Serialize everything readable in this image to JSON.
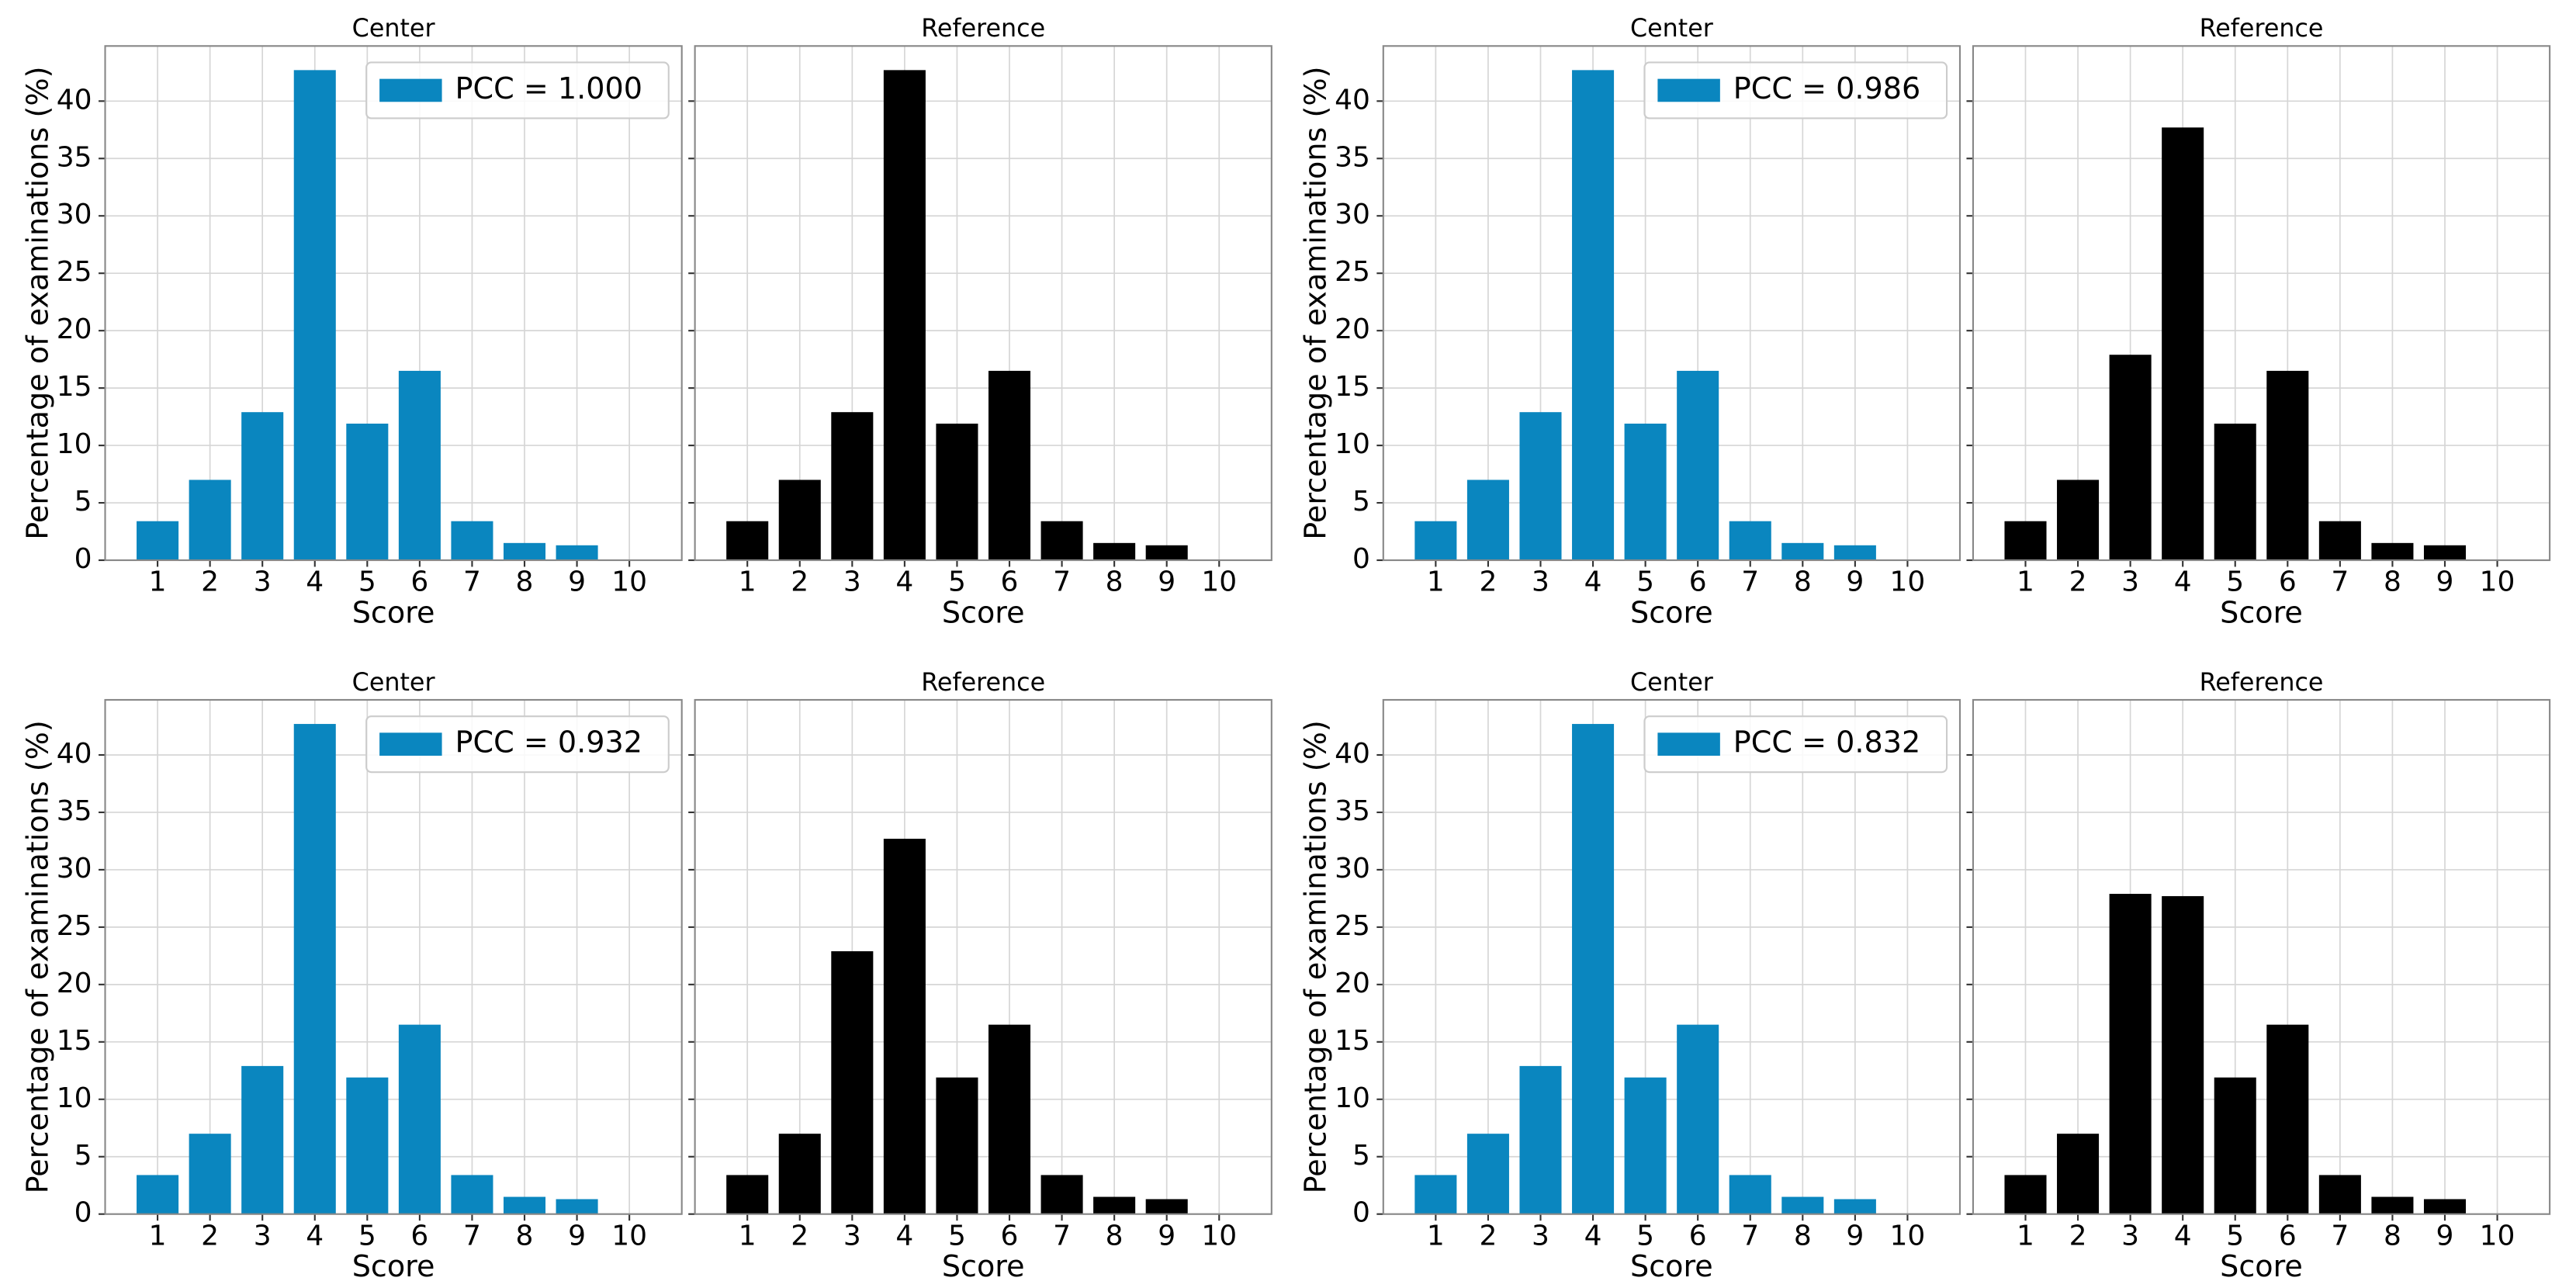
{
  "chart_data": [
    {
      "type": "bar",
      "title": "Center",
      "xlabel": "Score",
      "ylabel": "Percentage of examinations (%)",
      "x": [
        1,
        2,
        3,
        4,
        5,
        6,
        7,
        8,
        9,
        10
      ],
      "xlim": [
        0,
        11
      ],
      "xticks": [
        1,
        2,
        3,
        4,
        5,
        6,
        7,
        8,
        9,
        10
      ],
      "ylim": [
        0,
        44.8
      ],
      "yticks": [
        0,
        5,
        10,
        15,
        20,
        25,
        30,
        35,
        40
      ],
      "grid": true,
      "legend": "upper right",
      "series": [
        {
          "name": "PCC = 1.000",
          "color": "#0a86bf",
          "values": [
            3.4,
            7,
            12.9,
            42.7,
            11.9,
            16.5,
            3.4,
            1.5,
            1.3,
            0
          ]
        }
      ]
    },
    {
      "type": "bar",
      "title": "Reference",
      "xlabel": "Score",
      "sharey": true,
      "x": [
        1,
        2,
        3,
        4,
        5,
        6,
        7,
        8,
        9,
        10
      ],
      "xlim": [
        0,
        11
      ],
      "xticks": [
        1,
        2,
        3,
        4,
        5,
        6,
        7,
        8,
        9,
        10
      ],
      "grid": true,
      "series": [
        {
          "color": "#000000",
          "values": [
            3.4,
            7,
            12.9,
            42.7,
            11.9,
            16.5,
            3.4,
            1.5,
            1.3,
            0
          ]
        }
      ]
    },
    {
      "type": "bar",
      "title": "Center",
      "xlabel": "Score",
      "ylabel": "Percentage of examinations (%)",
      "x": [
        1,
        2,
        3,
        4,
        5,
        6,
        7,
        8,
        9,
        10
      ],
      "xlim": [
        0,
        11
      ],
      "xticks": [
        1,
        2,
        3,
        4,
        5,
        6,
        7,
        8,
        9,
        10
      ],
      "ylim": [
        0,
        44.8
      ],
      "yticks": [
        0,
        5,
        10,
        15,
        20,
        25,
        30,
        35,
        40
      ],
      "grid": true,
      "legend": "upper right",
      "series": [
        {
          "name": "PCC = 0.986",
          "color": "#0a86bf",
          "values": [
            3.4,
            7,
            12.9,
            42.7,
            11.9,
            16.5,
            3.4,
            1.5,
            1.3,
            0
          ]
        }
      ]
    },
    {
      "type": "bar",
      "title": "Reference",
      "xlabel": "Score",
      "sharey": true,
      "x": [
        1,
        2,
        3,
        4,
        5,
        6,
        7,
        8,
        9,
        10
      ],
      "xlim": [
        0,
        11
      ],
      "xticks": [
        1,
        2,
        3,
        4,
        5,
        6,
        7,
        8,
        9,
        10
      ],
      "grid": true,
      "series": [
        {
          "color": "#000000",
          "values": [
            3.4,
            7,
            17.9,
            37.7,
            11.9,
            16.5,
            3.4,
            1.5,
            1.3,
            0
          ]
        }
      ]
    },
    {
      "type": "bar",
      "title": "Center",
      "xlabel": "Score",
      "ylabel": "Percentage of examinations (%)",
      "x": [
        1,
        2,
        3,
        4,
        5,
        6,
        7,
        8,
        9,
        10
      ],
      "xlim": [
        0,
        11
      ],
      "xticks": [
        1,
        2,
        3,
        4,
        5,
        6,
        7,
        8,
        9,
        10
      ],
      "ylim": [
        0,
        44.8
      ],
      "yticks": [
        0,
        5,
        10,
        15,
        20,
        25,
        30,
        35,
        40
      ],
      "grid": true,
      "legend": "upper right",
      "series": [
        {
          "name": "PCC = 0.932",
          "color": "#0a86bf",
          "values": [
            3.4,
            7,
            12.9,
            42.7,
            11.9,
            16.5,
            3.4,
            1.5,
            1.3,
            0
          ]
        }
      ]
    },
    {
      "type": "bar",
      "title": "Reference",
      "xlabel": "Score",
      "sharey": true,
      "x": [
        1,
        2,
        3,
        4,
        5,
        6,
        7,
        8,
        9,
        10
      ],
      "xlim": [
        0,
        11
      ],
      "xticks": [
        1,
        2,
        3,
        4,
        5,
        6,
        7,
        8,
        9,
        10
      ],
      "grid": true,
      "series": [
        {
          "color": "#000000",
          "values": [
            3.4,
            7,
            22.9,
            32.7,
            11.9,
            16.5,
            3.4,
            1.5,
            1.3,
            0
          ]
        }
      ]
    },
    {
      "type": "bar",
      "title": "Center",
      "xlabel": "Score",
      "ylabel": "Percentage of examinations (%)",
      "x": [
        1,
        2,
        3,
        4,
        5,
        6,
        7,
        8,
        9,
        10
      ],
      "xlim": [
        0,
        11
      ],
      "xticks": [
        1,
        2,
        3,
        4,
        5,
        6,
        7,
        8,
        9,
        10
      ],
      "ylim": [
        0,
        44.8
      ],
      "yticks": [
        0,
        5,
        10,
        15,
        20,
        25,
        30,
        35,
        40
      ],
      "grid": true,
      "legend": "upper right",
      "series": [
        {
          "name": "PCC = 0.832",
          "color": "#0a86bf",
          "values": [
            3.4,
            7,
            12.9,
            42.7,
            11.9,
            16.5,
            3.4,
            1.5,
            1.3,
            0
          ]
        }
      ]
    },
    {
      "type": "bar",
      "title": "Reference",
      "xlabel": "Score",
      "sharey": true,
      "x": [
        1,
        2,
        3,
        4,
        5,
        6,
        7,
        8,
        9,
        10
      ],
      "xlim": [
        0,
        11
      ],
      "xticks": [
        1,
        2,
        3,
        4,
        5,
        6,
        7,
        8,
        9,
        10
      ],
      "grid": true,
      "series": [
        {
          "color": "#000000",
          "values": [
            3.4,
            7,
            27.9,
            27.7,
            11.9,
            16.5,
            3.4,
            1.5,
            1.3,
            0
          ]
        }
      ]
    }
  ]
}
